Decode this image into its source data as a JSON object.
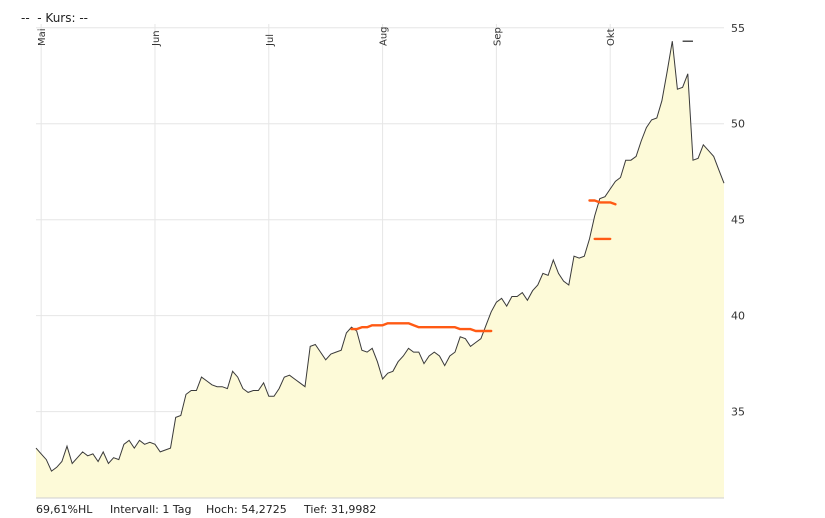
{
  "header": {
    "title": "--  - Kurs: --"
  },
  "footer": {
    "range": "69,61%HL",
    "interval": "Intervall: 1 Tag",
    "high": "Hoch: 54,2725",
    "low": "Tief: 31,9982"
  },
  "colors": {
    "line": "#3a3a3a",
    "area": "#fdfad8",
    "grid": "#e6e6e6",
    "annotation": "#ff5a14"
  },
  "chart_data": {
    "type": "area",
    "ylim": [
      30.5,
      55.3
    ],
    "y_ticks": [
      "35",
      "40",
      "45",
      "50",
      "55"
    ],
    "x_ticks": [
      {
        "label": "Mai",
        "index": 1
      },
      {
        "label": "Jun",
        "index": 23
      },
      {
        "label": "Jul",
        "index": 45
      },
      {
        "label": "Aug",
        "index": 67
      },
      {
        "label": "Sep",
        "index": 89
      },
      {
        "label": "Okt",
        "index": 111
      }
    ],
    "values": [
      33.1,
      32.8,
      32.5,
      31.9,
      32.1,
      32.4,
      33.2,
      32.3,
      32.6,
      32.9,
      32.7,
      32.8,
      32.4,
      32.9,
      32.3,
      32.6,
      32.5,
      33.3,
      33.5,
      33.1,
      33.5,
      33.3,
      33.4,
      33.3,
      32.9,
      33.0,
      33.1,
      34.7,
      34.8,
      35.9,
      36.1,
      36.1,
      36.8,
      36.6,
      36.4,
      36.3,
      36.3,
      36.2,
      37.1,
      36.8,
      36.2,
      36.0,
      36.1,
      36.1,
      36.5,
      35.8,
      35.8,
      36.2,
      36.8,
      36.9,
      36.7,
      36.5,
      36.3,
      38.4,
      38.5,
      38.1,
      37.7,
      38.0,
      38.1,
      38.2,
      39.1,
      39.4,
      39.2,
      38.2,
      38.1,
      38.3,
      37.6,
      36.7,
      37.0,
      37.1,
      37.6,
      37.9,
      38.3,
      38.1,
      38.1,
      37.5,
      37.9,
      38.1,
      37.9,
      37.4,
      37.9,
      38.1,
      38.9,
      38.8,
      38.4,
      38.6,
      38.8,
      39.5,
      40.2,
      40.7,
      40.9,
      40.5,
      41.0,
      41.0,
      41.2,
      40.8,
      41.3,
      41.6,
      42.2,
      42.1,
      42.9,
      42.2,
      41.8,
      41.6,
      43.1,
      43.0,
      43.1,
      44.0,
      45.2,
      46.1,
      46.2,
      46.6,
      47.0,
      47.2,
      48.1,
      48.1,
      48.3,
      49.1,
      49.8,
      50.2,
      50.3,
      51.2,
      52.7,
      54.3,
      51.8,
      51.9,
      52.6,
      48.1,
      48.2,
      48.9,
      48.6,
      48.3,
      47.6,
      46.9
    ],
    "annotations": [
      {
        "type": "resistance",
        "from": 61,
        "to": 88,
        "values": [
          39.3,
          39.3,
          39.4,
          39.4,
          39.5,
          39.5,
          39.5,
          39.6,
          39.6,
          39.6,
          39.6,
          39.6,
          39.5,
          39.4,
          39.4,
          39.4,
          39.4,
          39.4,
          39.4,
          39.4,
          39.4,
          39.3,
          39.3,
          39.3,
          39.2,
          39.2,
          39.2,
          39.2
        ]
      },
      {
        "type": "gap",
        "from": 107,
        "to": 112,
        "values": [
          46.0,
          46.0,
          45.9,
          45.9,
          45.9,
          45.8
        ]
      },
      {
        "type": "gap",
        "from": 108,
        "to": 111,
        "values": [
          44.0,
          44.0,
          44.0,
          44.0
        ]
      },
      {
        "type": "peak",
        "from": 125,
        "to": 127,
        "values": [
          54.3,
          54.3,
          54.3
        ]
      }
    ]
  }
}
